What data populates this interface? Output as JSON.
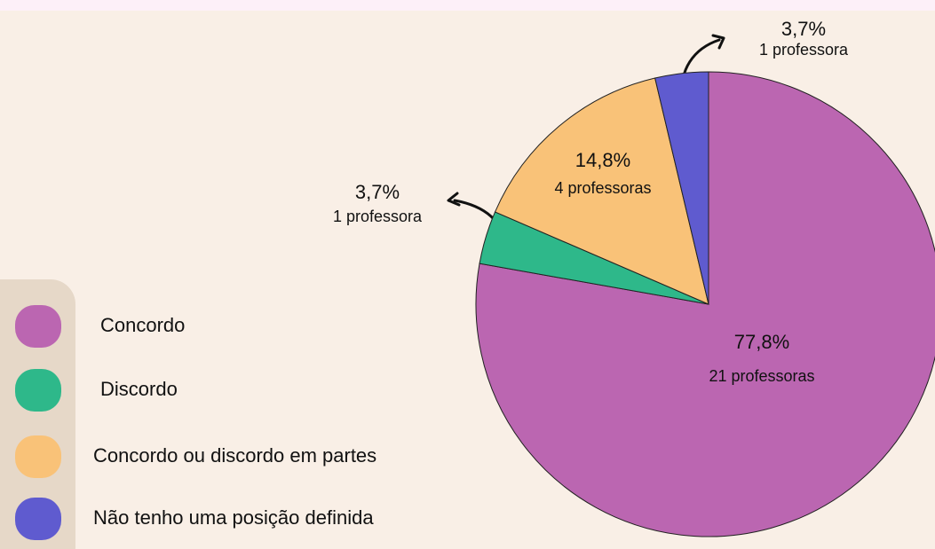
{
  "chart_data": {
    "type": "pie",
    "categories": [
      "Concordo",
      "Discordo",
      "Concordo ou discordo em partes",
      "Não tenho uma posição definida"
    ],
    "values": [
      77.8,
      3.7,
      14.8,
      3.7
    ],
    "value_labels": [
      "77,8%",
      "3,7%",
      "14,8%",
      "3,7%"
    ],
    "count_labels": [
      "21 professoras",
      "1 professora",
      "4 professoras",
      "1 professora"
    ],
    "colors": [
      "#bb66b1",
      "#2eb88a",
      "#f9c278",
      "#5f5bcf"
    ],
    "legend": "left"
  }
}
